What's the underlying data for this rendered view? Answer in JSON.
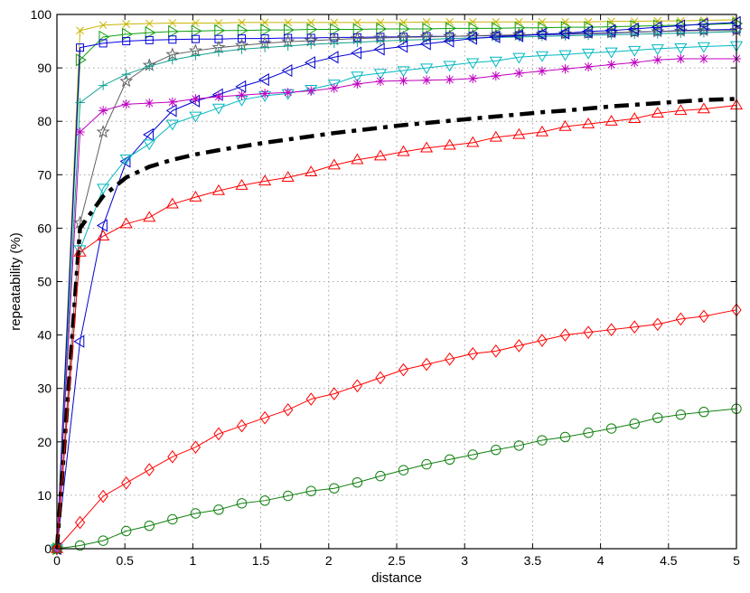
{
  "chart_data": {
    "type": "line",
    "title": "",
    "xlabel": "distance",
    "ylabel": "repeatability (%)",
    "xlim": [
      0,
      5
    ],
    "ylim": [
      0,
      100
    ],
    "grid": true,
    "legend": "none",
    "xticks": [
      0,
      0.5,
      1,
      1.5,
      2,
      2.5,
      3,
      3.5,
      4,
      4.5,
      5
    ],
    "yticks": [
      0,
      10,
      20,
      30,
      40,
      50,
      60,
      70,
      80,
      90,
      100
    ],
    "x": [
      0,
      0.17,
      0.34,
      0.51,
      0.68,
      0.85,
      1.02,
      1.19,
      1.36,
      1.53,
      1.7,
      1.87,
      2.04,
      2.21,
      2.38,
      2.55,
      2.72,
      2.89,
      3.06,
      3.23,
      3.4,
      3.57,
      3.74,
      3.91,
      4.08,
      4.25,
      4.42,
      4.59,
      4.76,
      5.0
    ],
    "series": [
      {
        "color": "#c8b400",
        "marker": "x",
        "values": [
          0,
          97,
          98,
          98.2,
          98.3,
          98.4,
          98.4,
          98.4,
          98.5,
          98.5,
          98.5,
          98.5,
          98.5,
          98.5,
          98.5,
          98.5,
          98.6,
          98.6,
          98.6,
          98.6,
          98.6,
          98.6,
          98.6,
          98.6,
          98.7,
          98.7,
          98.8,
          98.8,
          98.9,
          99.0
        ]
      },
      {
        "color": "#10a010",
        "marker": "triangle-right",
        "values": [
          0,
          91.5,
          95.8,
          96.3,
          96.6,
          96.8,
          96.9,
          97.0,
          97.0,
          97.1,
          97.1,
          97.2,
          97.2,
          97.2,
          97.3,
          97.3,
          97.3,
          97.4,
          97.4,
          97.4,
          97.5,
          97.5,
          97.6,
          97.6,
          97.7,
          97.8,
          97.9,
          98.0,
          98.1,
          98.3
        ]
      },
      {
        "color": "#0000e0",
        "marker": "square",
        "values": [
          0,
          93.8,
          94.6,
          95.0,
          95.2,
          95.3,
          95.4,
          95.4,
          95.5,
          95.5,
          95.6,
          95.6,
          95.7,
          95.7,
          95.8,
          95.8,
          95.9,
          95.9,
          96.0,
          96.0,
          96.1,
          96.2,
          96.3,
          96.4,
          96.5,
          96.7,
          96.8,
          97.0,
          97.1,
          97.2
        ]
      },
      {
        "color": "#606060",
        "marker": "star",
        "values": [
          0,
          61,
          78,
          87.5,
          90.5,
          92.5,
          93.2,
          93.8,
          94.2,
          94.6,
          94.9,
          95.1,
          95.3,
          95.5,
          95.6,
          95.7,
          95.8,
          95.9,
          96.0,
          96.1,
          96.2,
          96.3,
          96.4,
          96.5,
          96.6,
          96.7,
          96.8,
          96.9,
          97.0,
          97.0
        ]
      },
      {
        "color": "#10a090",
        "marker": "plus",
        "values": [
          0,
          83.5,
          86.7,
          88.8,
          90.3,
          91.5,
          92.3,
          93.0,
          93.5,
          93.8,
          94.1,
          94.4,
          94.6,
          94.8,
          95.0,
          95.2,
          95.3,
          95.5,
          95.6,
          95.7,
          95.8,
          95.9,
          96.0,
          96.1,
          96.2,
          96.3,
          96.4,
          96.5,
          96.6,
          96.8
        ]
      },
      {
        "color": "#0000d0",
        "marker": "triangle-left",
        "values": [
          0,
          38.8,
          60.5,
          72.5,
          77.5,
          82.0,
          83.8,
          85.0,
          86.5,
          87.8,
          89.5,
          91.0,
          92.0,
          92.8,
          93.5,
          94.0,
          94.5,
          95.0,
          95.5,
          95.8,
          96.0,
          96.3,
          96.5,
          96.8,
          97.0,
          97.3,
          97.6,
          97.9,
          98.2,
          98.5
        ]
      },
      {
        "color": "#00b8c0",
        "marker": "triangle-down",
        "values": [
          0,
          56.0,
          67.5,
          73.0,
          75.8,
          79.5,
          81.0,
          82.5,
          84.0,
          84.8,
          85.2,
          86.0,
          87.0,
          88.5,
          89.0,
          89.5,
          90.0,
          90.5,
          91.0,
          91.3,
          92.0,
          92.3,
          92.5,
          92.8,
          93.0,
          93.3,
          93.6,
          93.8,
          94.0,
          94.2
        ]
      },
      {
        "color": "#c000c0",
        "marker": "asterisk",
        "values": [
          0,
          78.0,
          82.0,
          83.2,
          83.4,
          83.6,
          84.2,
          84.6,
          84.9,
          85.2,
          85.4,
          85.7,
          86.2,
          87.0,
          87.5,
          87.6,
          87.7,
          87.8,
          88.0,
          88.5,
          89.0,
          89.4,
          89.8,
          90.2,
          90.6,
          91.0,
          91.5,
          91.7,
          91.7,
          91.7
        ]
      },
      {
        "color": "#000000",
        "marker": "none",
        "dash": "dashdot",
        "values": [
          0,
          60,
          66,
          69.5,
          71.5,
          72.8,
          73.8,
          74.6,
          75.3,
          76.0,
          76.6,
          77.2,
          77.8,
          78.3,
          78.8,
          79.3,
          79.7,
          80.1,
          80.5,
          80.9,
          81.3,
          81.7,
          82.0,
          82.4,
          82.8,
          83.1,
          83.4,
          83.7,
          84.0,
          84.2
        ]
      },
      {
        "color": "#ff0000",
        "marker": "triangle-up",
        "values": [
          0,
          55.5,
          58.5,
          60.8,
          62.0,
          64.5,
          65.8,
          67.0,
          68.0,
          68.8,
          69.5,
          70.5,
          71.8,
          72.8,
          73.5,
          74.3,
          75.0,
          75.5,
          76.0,
          77.0,
          77.5,
          78.0,
          79.0,
          79.5,
          80.0,
          80.5,
          81.5,
          82.0,
          82.3,
          83.0
        ]
      },
      {
        "color": "#ff0000",
        "marker": "diamond",
        "values": [
          0,
          4.9,
          9.8,
          12.3,
          14.8,
          17.2,
          19.0,
          21.5,
          23.0,
          24.5,
          26.0,
          28.0,
          29.0,
          30.5,
          32.0,
          33.5,
          34.5,
          35.5,
          36.5,
          37.0,
          38.0,
          39.0,
          40.0,
          40.5,
          41.0,
          41.5,
          42.0,
          43.0,
          43.5,
          44.7
        ]
      },
      {
        "color": "#108010",
        "marker": "circle",
        "values": [
          0,
          0.6,
          1.5,
          3.3,
          4.3,
          5.5,
          6.6,
          7.3,
          8.5,
          9.0,
          9.9,
          10.8,
          11.3,
          12.4,
          13.6,
          14.7,
          15.8,
          16.7,
          17.6,
          18.5,
          19.3,
          20.3,
          20.9,
          21.7,
          22.5,
          23.4,
          24.5,
          25.1,
          25.6,
          26.2
        ]
      }
    ]
  }
}
